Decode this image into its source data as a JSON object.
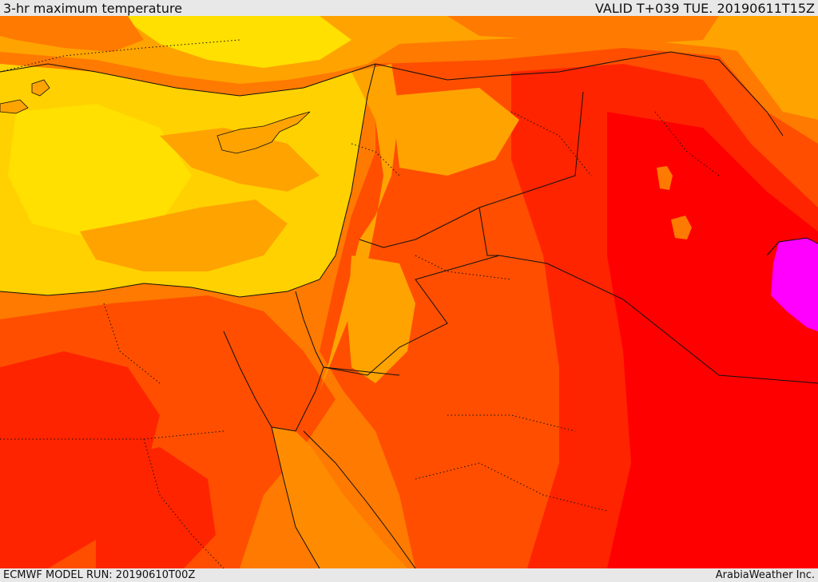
{
  "header": {
    "title": "3-hr maximum temperature",
    "valid": "VALID T+039 TUE. 20190611T15Z"
  },
  "footer": {
    "model_run": "ECMWF MODEL RUN: 20190610T00Z",
    "credit": "ArabiaWeather Inc."
  },
  "map": {
    "region": "Eastern Mediterranean and Middle East",
    "colors": {
      "coolest": "#ffe000",
      "cool": "#ffd100",
      "warm": "#ffa300",
      "hot": "#ff7a00",
      "hotter": "#ff4e00",
      "very_hot": "#ff2400",
      "extreme": "#ff0000",
      "peak": "#ff00ff",
      "boundary": "#111111"
    }
  }
}
